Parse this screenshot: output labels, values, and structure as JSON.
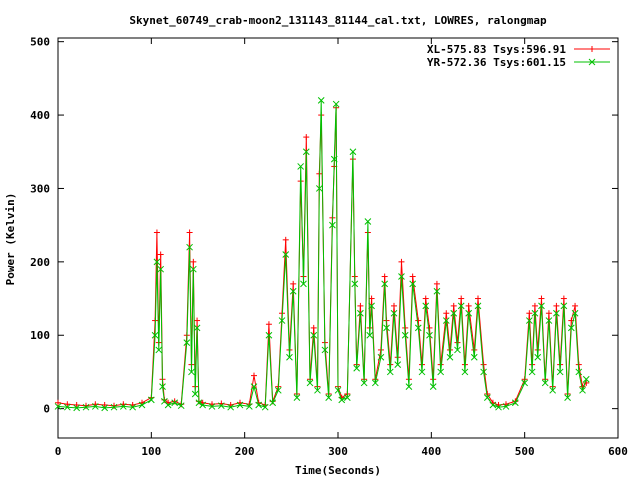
{
  "chart_data": {
    "type": "line",
    "title": "Skynet_60749_crab-moon2_131143_81144_cal.txt, LOWRES, ralongmap",
    "xlabel": "Time(Seconds)",
    "ylabel": "Power (Kelvin)",
    "xlim": [
      0,
      600
    ],
    "ylim": [
      -40,
      505
    ],
    "xticks": [
      0,
      100,
      200,
      300,
      400,
      500,
      600
    ],
    "yticks": [
      0,
      100,
      200,
      300,
      400,
      500
    ],
    "grid": false,
    "legend_position": "top-right",
    "series": [
      {
        "name": "XL-575.83 Tsys:596.91",
        "color": "#ff0000",
        "marker": "plus",
        "x": [
          0,
          10,
          20,
          30,
          40,
          50,
          60,
          70,
          80,
          90,
          100,
          104,
          106,
          108,
          110,
          112,
          114,
          118,
          125,
          132,
          138,
          141,
          143,
          145,
          147,
          149,
          151,
          155,
          165,
          175,
          185,
          195,
          205,
          210,
          215,
          222,
          226,
          230,
          236,
          240,
          244,
          248,
          252,
          256,
          260,
          263,
          266,
          270,
          274,
          278,
          280,
          282,
          286,
          290,
          294,
          296,
          298,
          300,
          304,
          310,
          316,
          318,
          320,
          324,
          328,
          332,
          334,
          336,
          340,
          346,
          350,
          352,
          356,
          360,
          364,
          368,
          372,
          376,
          380,
          386,
          390,
          394,
          398,
          402,
          406,
          410,
          416,
          420,
          424,
          428,
          432,
          436,
          440,
          446,
          450,
          456,
          460,
          466,
          472,
          480,
          490,
          500,
          505,
          508,
          511,
          514,
          518,
          522,
          526,
          530,
          534,
          538,
          542,
          546,
          550,
          554,
          558,
          562,
          566
        ],
        "y": [
          8,
          6,
          5,
          4,
          6,
          5,
          4,
          6,
          5,
          8,
          15,
          120,
          240,
          90,
          210,
          40,
          12,
          8,
          10,
          6,
          100,
          240,
          60,
          200,
          30,
          120,
          10,
          8,
          6,
          7,
          5,
          8,
          6,
          45,
          8,
          5,
          115,
          10,
          30,
          130,
          230,
          80,
          170,
          20,
          310,
          180,
          370,
          40,
          110,
          30,
          320,
          400,
          90,
          20,
          260,
          330,
          410,
          30,
          15,
          20,
          340,
          180,
          60,
          140,
          40,
          240,
          110,
          150,
          40,
          80,
          180,
          120,
          60,
          140,
          70,
          200,
          110,
          40,
          180,
          120,
          60,
          150,
          110,
          40,
          170,
          60,
          130,
          80,
          140,
          90,
          150,
          60,
          140,
          80,
          150,
          60,
          20,
          8,
          5,
          6,
          10,
          40,
          130,
          60,
          140,
          80,
          150,
          40,
          130,
          30,
          140,
          60,
          150,
          20,
          120,
          140,
          60,
          30,
          35
        ]
      },
      {
        "name": "YR-572.36 Tsys:601.15",
        "color": "#00c000",
        "marker": "cross",
        "x": [
          0,
          10,
          20,
          30,
          40,
          50,
          60,
          70,
          80,
          90,
          100,
          104,
          106,
          108,
          110,
          112,
          114,
          118,
          125,
          132,
          138,
          141,
          143,
          145,
          147,
          149,
          151,
          155,
          165,
          175,
          185,
          195,
          205,
          210,
          215,
          222,
          226,
          230,
          236,
          240,
          244,
          248,
          252,
          256,
          260,
          263,
          266,
          270,
          274,
          278,
          280,
          282,
          286,
          290,
          294,
          296,
          298,
          300,
          304,
          310,
          316,
          318,
          320,
          324,
          328,
          332,
          334,
          336,
          340,
          346,
          350,
          352,
          356,
          360,
          364,
          368,
          372,
          376,
          380,
          386,
          390,
          394,
          398,
          402,
          406,
          410,
          416,
          420,
          424,
          428,
          432,
          436,
          440,
          446,
          450,
          456,
          460,
          466,
          472,
          480,
          490,
          500,
          505,
          508,
          511,
          514,
          518,
          522,
          526,
          530,
          534,
          538,
          542,
          546,
          550,
          554,
          558,
          562,
          566
        ],
        "y": [
          3,
          2,
          1,
          2,
          3,
          1,
          2,
          3,
          2,
          5,
          12,
          100,
          200,
          80,
          190,
          30,
          10,
          5,
          8,
          4,
          90,
          220,
          50,
          190,
          20,
          110,
          8,
          5,
          3,
          4,
          2,
          5,
          3,
          30,
          5,
          2,
          100,
          8,
          25,
          120,
          210,
          70,
          160,
          15,
          330,
          170,
          350,
          35,
          100,
          25,
          300,
          420,
          80,
          15,
          250,
          340,
          415,
          25,
          12,
          15,
          350,
          170,
          55,
          130,
          35,
          255,
          100,
          140,
          35,
          70,
          170,
          110,
          50,
          130,
          60,
          180,
          100,
          30,
          170,
          110,
          50,
          140,
          100,
          30,
          160,
          50,
          120,
          70,
          130,
          80,
          140,
          50,
          130,
          70,
          140,
          50,
          15,
          5,
          2,
          3,
          8,
          35,
          120,
          50,
          130,
          70,
          140,
          35,
          120,
          25,
          130,
          50,
          140,
          15,
          110,
          130,
          50,
          25,
          40
        ]
      }
    ]
  }
}
